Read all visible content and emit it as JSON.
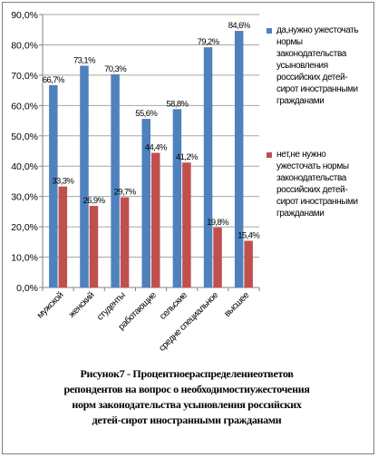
{
  "chart_data": {
    "type": "bar",
    "categories": [
      "мужской",
      "женский",
      "студенты",
      "работающие",
      "сельские",
      "средне специальное",
      "высшее"
    ],
    "series": [
      {
        "name": "да,нужно ужесточать нормы законодательства усыновления российских детей-сирот иностранными гражданами",
        "values": [
          66.7,
          73.1,
          70.3,
          55.6,
          58.8,
          79.2,
          84.6
        ],
        "labels": [
          "66,7%",
          "73,1%",
          "70,3%",
          "55,6%",
          "58,8%",
          "79,2%",
          "84,6%"
        ],
        "color": "#4f81bd"
      },
      {
        "name": "нет,не нужно ужесточать нормы законодательства российских детей-сирот иностранными гражданами",
        "values": [
          33.3,
          26.9,
          29.7,
          44.4,
          41.2,
          19.8,
          15.4
        ],
        "labels": [
          "33,3%",
          "26,9%",
          "29,7%",
          "44,4%",
          "41,2%",
          "19,8%",
          "15,4%"
        ],
        "color": "#c0504d"
      }
    ],
    "ylim": [
      0,
      90
    ],
    "yticks": [
      "0,0%",
      "10,0%",
      "20,0%",
      "30,0%",
      "40,0%",
      "50,0%",
      "60,0%",
      "70,0%",
      "80,0%",
      "90,0%"
    ],
    "grid": true,
    "legend_position": "right"
  },
  "legend": {
    "item1_lines": [
      "да,нужно ужесточать",
      "нормы",
      "законодательства",
      "усыновления",
      "российских детей-",
      "сирот иностранными",
      "гражданами"
    ],
    "item2_lines": [
      "нет,не нужно",
      "ужесточать нормы",
      "законодательства",
      "российских детей-",
      "сирот иностранными",
      "гражданами"
    ]
  },
  "caption_lines": [
    "Рисунок7 - Процентноераспределениеответов",
    "репондентов на вопрос о необходимостиужесточения",
    "норм законодательства усыновления российских",
    "детей-сирот иностранными гражданами"
  ]
}
